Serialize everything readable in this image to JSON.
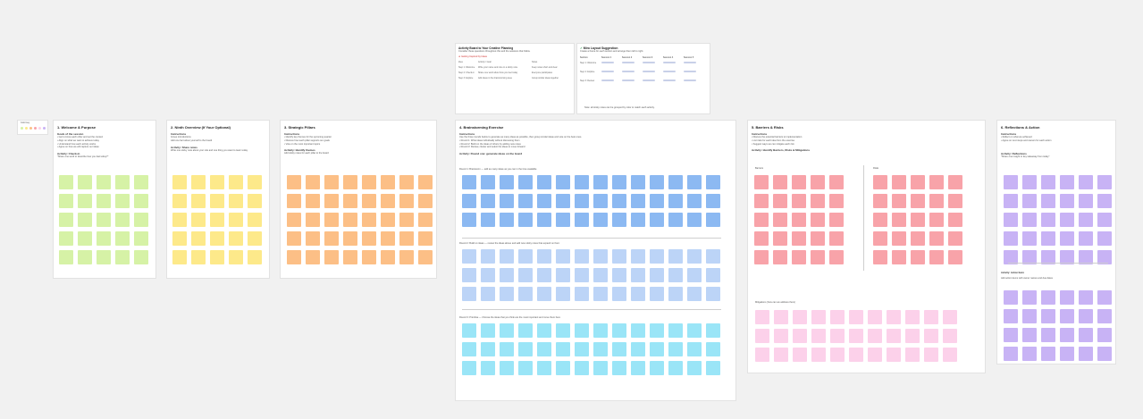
{
  "colors": {
    "green": "#d6f2a6",
    "yellow": "#fde98a",
    "orange": "#fcbf86",
    "blue": "#8cb9f2",
    "lightblue": "#bcd4f7",
    "cyan": "#9ae5f7",
    "red": "#f8a3a9",
    "pink": "#fcd1ea",
    "purple": "#c8b3f5"
  },
  "legend": {
    "label": "Color key",
    "swatch_count": 6
  },
  "top": {
    "left_title": "Activity Board to Your Creative Planning",
    "left_intro": "Consider these questions throughout this and the sessions that follow.",
    "left_link": "Getting Inspired by Ideas",
    "left_rows": [
      [
        "Idea",
        "Activity / Goal",
        "Notes"
      ],
      [
        "Step 1: Welcome",
        "Write your name and role on a sticky note",
        "Keep notes short and clear"
      ],
      [
        "Step 2: Check-in",
        "Share one word about how you feel today",
        "Everyone participates"
      ],
      [
        "Step 3: Explore",
        "Add ideas in the brainstorming area",
        "Group similar ideas together"
      ]
    ],
    "right_title": "Miro Layout Suggestion",
    "right_intro": "Create a frame for each section and arrange them left to right.",
    "right_cols": [
      "Section",
      "Session 1",
      "Session 2",
      "Session 3",
      "Session 4",
      "Session 5"
    ],
    "right_rows": [
      "Step 1: Welcome",
      "Step 2: Explore",
      "Step 3: Review"
    ],
    "right_footer": "Note: all sticky notes can be grouped by color to match each activity."
  },
  "panels": [
    {
      "title": "1. Welcome & Purpose",
      "lines_head": "Goals of the session",
      "lines": [
        "• Get to know each other and set the context",
        "• Align on what we want to achieve today",
        "• Understand how each activity works",
        "• Agree on how we will capture our ideas"
      ],
      "activity": "Activity: Check-in",
      "prompt": "\"Share one word to describe how you feel today?\""
    },
    {
      "title": "2. Ninth Overview (If Your Optional)",
      "lines_head": "Instructions",
      "lines": [
        "Group introductions",
        "Add one fact about yourself to the board"
      ],
      "activity": "Activity: Share notes",
      "prompt": "Write one sticky note about your role and one thing you want to learn today"
    },
    {
      "title": "3. Strategic Pillars",
      "lines_head": "Instructions",
      "lines": [
        "• Identify key themes for the upcoming quarter",
        "• Discuss how each pillar supports our goals",
        "• Vote on the most important topics"
      ],
      "activity": "Activity: Identify themes",
      "prompt": "Add sticky notes for each pillar to the board"
    },
    {
      "title": "4. Brainstorming Exercise",
      "lines_head": "Instructions",
      "lines": [
        "Use the three rounds below to generate as many ideas as possible, then group similar ideas and vote on the best ones.",
        "• Round 1: Write ideas individually without discussing them",
        "• Round 2: Build on the ideas of others by adding new notes",
        "• Round 3: Review, cluster and select the ideas to move forward"
      ],
      "activity": "Activity: Round one: generate ideas on the board",
      "round1": "Round 1: Brainstorm — add as many ideas as you can in the time available",
      "round2": "Round 2: Build on ideas — review the ideas above and add new sticky notes that expand on them",
      "round3": "Round 3: Prioritise — Choose the ideas that you think are the most important and move them here"
    },
    {
      "title": "5. Barriers & Risks",
      "lines_head": "Instructions",
      "lines": [
        "• Discuss the potential barriers to implementation",
        "• List risks for each idea from the exercise",
        "• Suggest ways we can mitigate each risk"
      ],
      "activity": "Activity: Identify Barriers, Risks & Mitigations",
      "col_a": "Barriers",
      "col_b": "Risks",
      "mitigations": "Mitigations (how can we address them)"
    },
    {
      "title": "6. Reflections & Action",
      "lines_head": "Instructions",
      "lines": [
        "• Reflect on what we achieved",
        "• Agree on next steps and owners for each action"
      ],
      "activity": "Activity: Reflections",
      "prompt": "\"Share one insight or key takeaway from today\"",
      "activity2": "Activity: Action Items",
      "prompt2": "Add action items with owner names and due dates"
    }
  ]
}
